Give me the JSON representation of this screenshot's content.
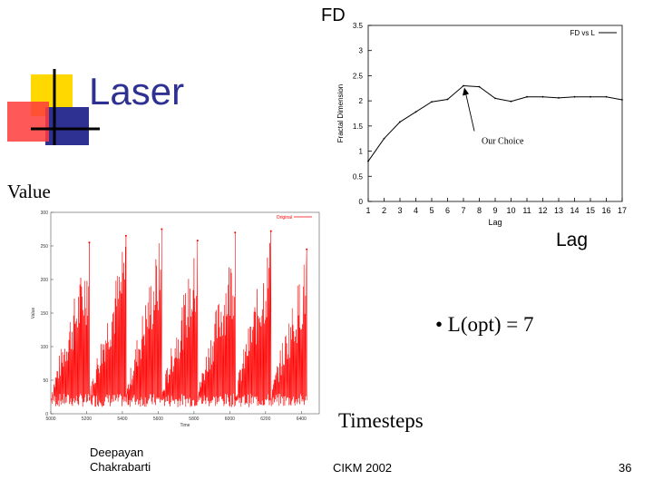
{
  "slide": {
    "title": "Laser",
    "fd_label": "FD",
    "value_label": "Value",
    "lag_label": "Lag",
    "timesteps_label": "Timesteps",
    "bullet": "• L(opt) = 7",
    "footer": {
      "author_line1": "Deepayan",
      "author_line2": "Chakrabarti",
      "conference": "CIKM 2002",
      "page": "36"
    },
    "colors": {
      "title": "#2e3192",
      "series_red": "#ff0000",
      "series_black": "#000000"
    }
  },
  "chart_data": [
    {
      "type": "line",
      "ylabel": "Fractal Dimension",
      "xlabel": "Lag",
      "legend": "FD vs L",
      "legend_position": "top-right",
      "annotation": "Our Choice",
      "annotation_target": 7,
      "x": [
        1,
        2,
        3,
        4,
        5,
        6,
        7,
        8,
        9,
        10,
        11,
        12,
        13,
        14,
        15,
        16,
        17
      ],
      "x_ticks": [
        "1",
        "2",
        "3",
        "4",
        "5",
        "6",
        "7",
        "8",
        "9",
        "10",
        "11",
        "12",
        "13",
        "14",
        "15",
        "16",
        "17"
      ],
      "y_ticks": [
        "0",
        "0.5",
        "1",
        "1.5",
        "2",
        "2.5",
        "3",
        "3.5"
      ],
      "series": [
        {
          "name": "FD vs L",
          "values": [
            0.8,
            1.25,
            1.58,
            1.78,
            1.98,
            2.03,
            2.3,
            2.28,
            2.05,
            1.99,
            2.08,
            2.08,
            2.06,
            2.08,
            2.08,
            2.08,
            2.02
          ]
        }
      ],
      "xlim": [
        1,
        17
      ],
      "ylim": [
        0,
        3.5
      ]
    },
    {
      "type": "line",
      "xlabel": "Time",
      "ylabel": "Value",
      "legend": "Original",
      "legend_position": "top-right",
      "y_ticks": [
        "0",
        "50",
        "100",
        "150",
        "200",
        "250",
        "300"
      ],
      "x_ticks": [
        "5000",
        "5200",
        "5400",
        "5600",
        "5800",
        "6000",
        "6200",
        "6400"
      ],
      "xlim": [
        5000,
        6500
      ],
      "ylim": [
        0,
        300
      ],
      "cycles": [
        {
          "start": 5000,
          "peak_time": 5215,
          "peak_value": 255
        },
        {
          "start": 5215,
          "peak_time": 5420,
          "peak_value": 265
        },
        {
          "start": 5420,
          "peak_time": 5620,
          "peak_value": 275
        },
        {
          "start": 5620,
          "peak_time": 5820,
          "peak_value": 258
        },
        {
          "start": 5820,
          "peak_time": 6030,
          "peak_value": 270
        },
        {
          "start": 6030,
          "peak_time": 6230,
          "peak_value": 272
        },
        {
          "start": 6230,
          "peak_time": 6430,
          "peak_value": 245
        }
      ]
    }
  ]
}
